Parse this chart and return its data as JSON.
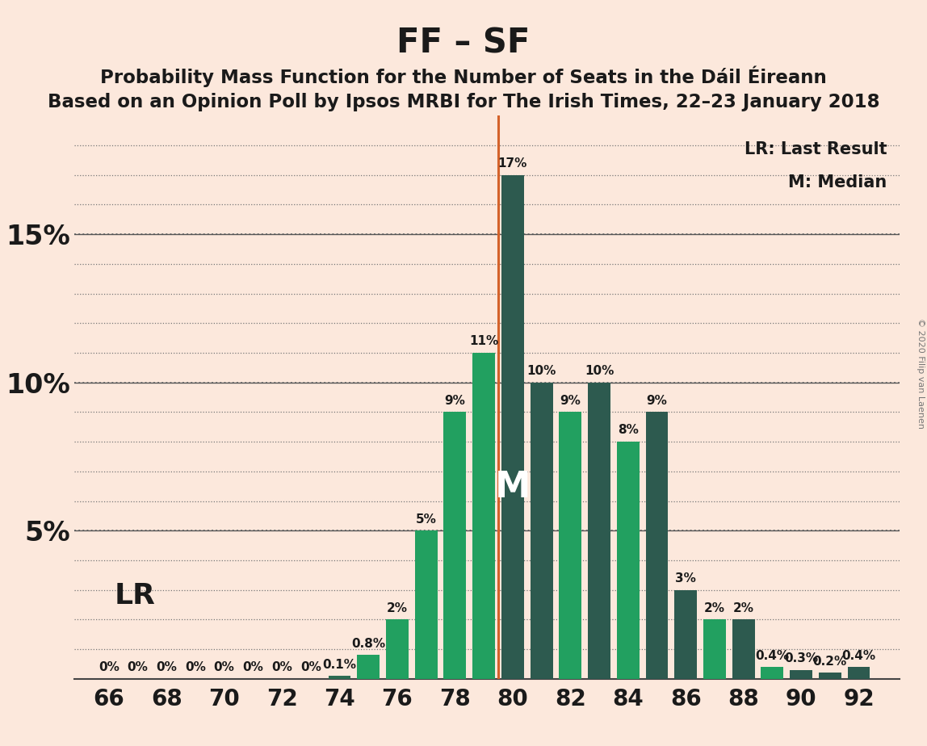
{
  "title": "FF – SF",
  "subtitle1": "Probability Mass Function for the Number of Seats in the Dáil Éireann",
  "subtitle2": "Based on an Opinion Poll by Ipsos MRBI for The Irish Times, 22–23 January 2018",
  "copyright": "© 2020 Filip van Laenen",
  "seats": [
    66,
    67,
    68,
    69,
    70,
    71,
    72,
    73,
    74,
    75,
    76,
    77,
    78,
    79,
    80,
    81,
    82,
    83,
    84,
    85,
    86,
    87,
    88,
    89,
    90,
    91,
    92
  ],
  "probs": [
    0.0,
    0.0,
    0.0,
    0.0,
    0.0,
    0.0,
    0.0,
    0.0,
    0.1,
    0.8,
    2.0,
    5.0,
    9.0,
    11.0,
    17.0,
    10.0,
    9.0,
    10.0,
    8.0,
    9.0,
    3.0,
    2.0,
    2.0,
    0.4,
    0.3,
    0.2,
    0.4
  ],
  "bar_colors": [
    "#2d6b52",
    "#2d6b52",
    "#2d6b52",
    "#2d6b52",
    "#2d6b52",
    "#2d6b52",
    "#2d6b52",
    "#2d6b52",
    "#2d6b52",
    "#22a060",
    "#22a060",
    "#22a060",
    "#22a060",
    "#22a060",
    "#2d5a4f",
    "#2d5a4f",
    "#22a060",
    "#2d5a4f",
    "#22a060",
    "#2d5a4f",
    "#2d5a4f",
    "#22a060",
    "#2d5a4f",
    "#22a060",
    "#2d5a4f",
    "#2d5a4f",
    "#2d5a4f"
  ],
  "lr_x": 79.5,
  "median_seat": 80,
  "background_color": "#fce8dc",
  "vline_color": "#d4622a",
  "ylim": [
    0,
    19
  ],
  "xlabel_ticks": [
    66,
    68,
    70,
    72,
    74,
    76,
    78,
    80,
    82,
    84,
    86,
    88,
    90,
    92
  ],
  "bar_width": 0.78,
  "title_fontsize": 30,
  "subtitle_fontsize": 16.5,
  "tick_fontsize": 20,
  "ylabel_fontsize": 24,
  "label_fontsize": 11,
  "lr_label_fontsize": 26,
  "median_label_fontsize": 32,
  "legend_fontsize": 15
}
